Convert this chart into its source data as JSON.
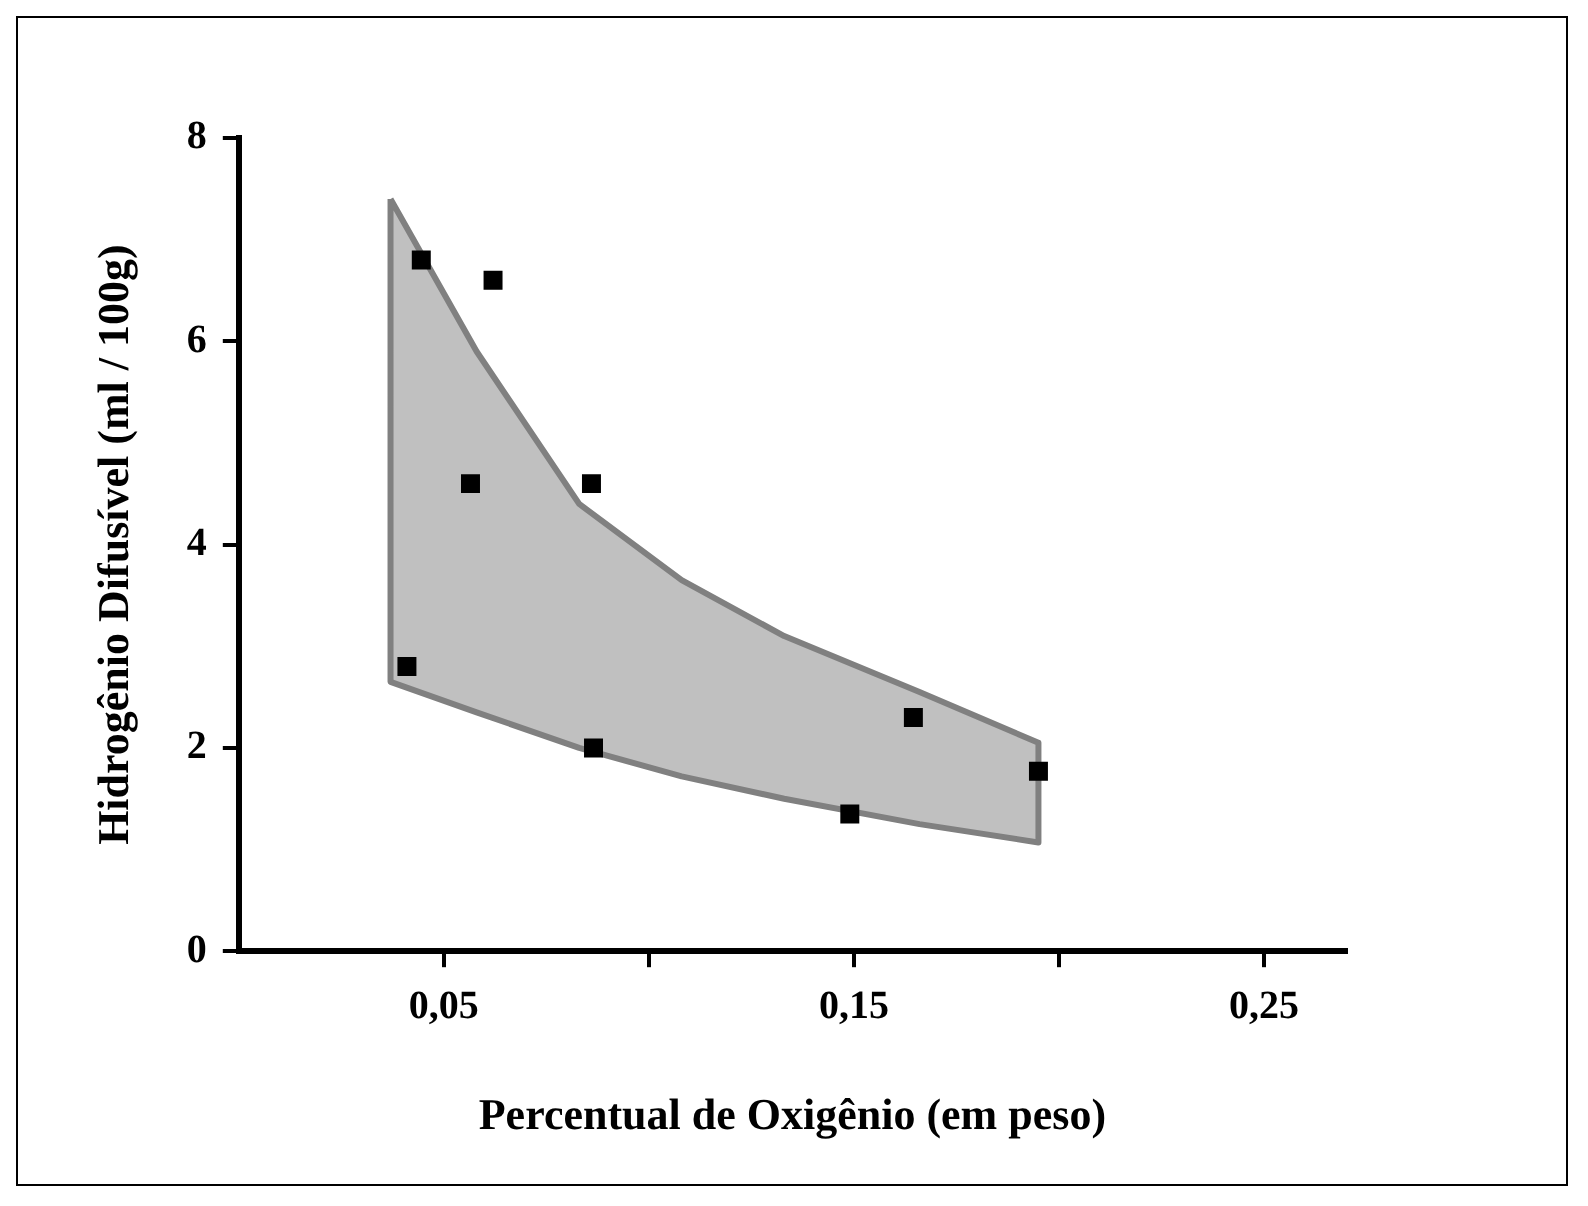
{
  "chart_data": {
    "type": "scatter",
    "xlabel": "Percentual de Oxigênio (em peso)",
    "ylabel": "Hidrogênio Difusível (ml / 100g)",
    "xlim": [
      0,
      0.27
    ],
    "xticks": [
      {
        "value": 0.05,
        "label": "0,05"
      },
      {
        "value": 0.1,
        "label": null
      },
      {
        "value": 0.15,
        "label": "0,15"
      },
      {
        "value": 0.2,
        "label": null
      },
      {
        "value": 0.25,
        "label": "0,25"
      }
    ],
    "ylim": [
      0,
      8
    ],
    "yticks": [
      0,
      2,
      4,
      6,
      8
    ],
    "grid": false,
    "legend": false,
    "series": [
      {
        "type": "area",
        "color": "#c0c0c0",
        "marker": "none",
        "x": [
          0.037,
          0.058,
          0.083,
          0.108,
          0.133,
          0.166,
          0.195,
          0.195,
          0.166,
          0.133,
          0.108,
          0.083,
          0.058,
          0.037,
          0.037
        ],
        "values": [
          7.4,
          5.9,
          4.4,
          3.65,
          3.1,
          2.55,
          2.05,
          1.07,
          1.25,
          1.5,
          1.72,
          2.0,
          2.35,
          2.65,
          7.4
        ]
      },
      {
        "type": "scatter",
        "color": "#000000",
        "marker": "square",
        "x": [
          0.0445,
          0.062,
          0.0565,
          0.086,
          0.041,
          0.0865,
          0.149,
          0.1645,
          0.195
        ],
        "values": [
          6.8,
          6.6,
          4.6,
          4.6,
          2.8,
          2.0,
          1.35,
          2.3,
          1.77
        ]
      }
    ]
  }
}
